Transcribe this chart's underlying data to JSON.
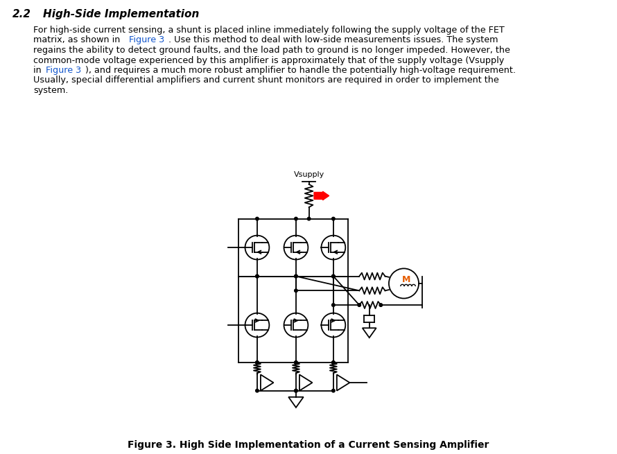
{
  "title_section": "2.2",
  "title_text": "High-Side Implementation",
  "link_color": "#1155CC",
  "text_color": "#000000",
  "bg_color": "#ffffff",
  "figure_caption": "Figure 3. High Side Implementation of a Current Sensing Amplifier",
  "title_fontsize": 11,
  "body_fontsize": 9.2,
  "caption_fontsize": 10
}
